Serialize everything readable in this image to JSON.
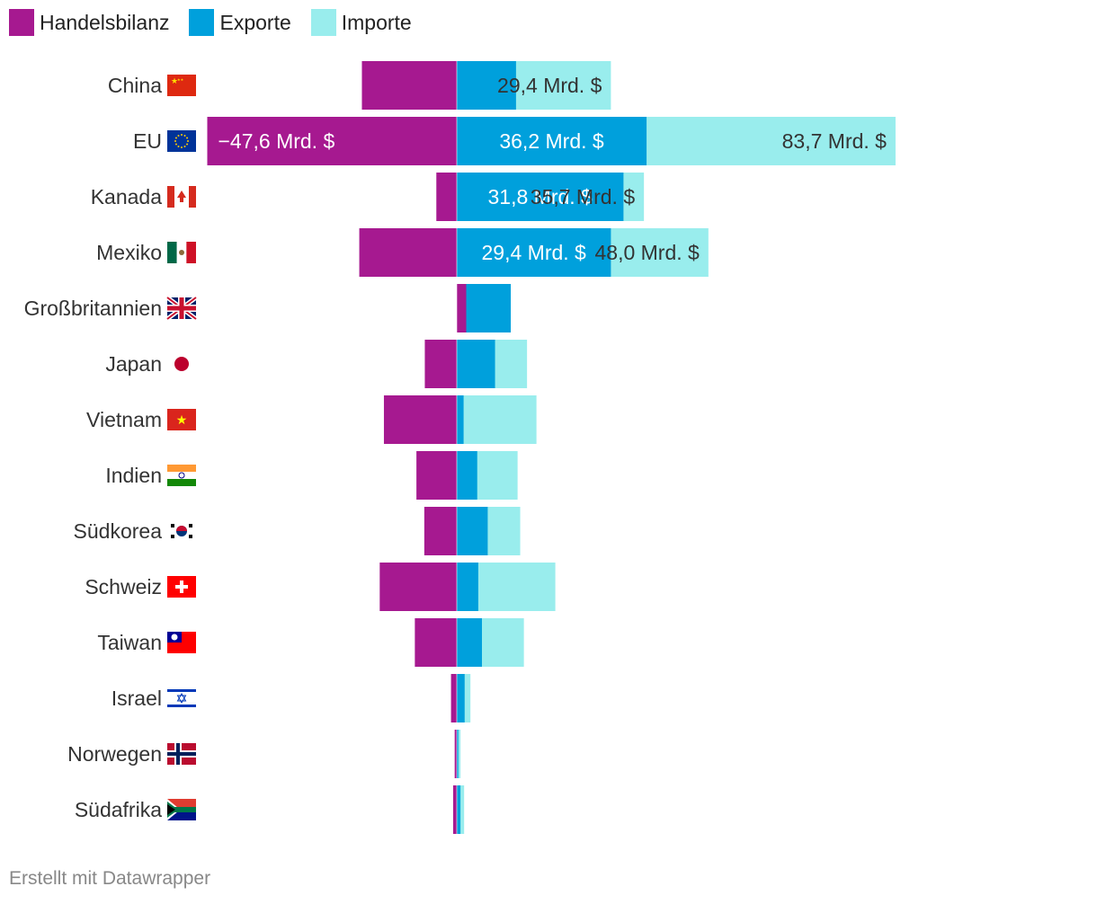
{
  "legend": {
    "items": [
      {
        "label": "Handelsbilanz",
        "color": "#a61990"
      },
      {
        "label": "Exporte",
        "color": "#00a0dc"
      },
      {
        "label": "Importe",
        "color": "#99eded"
      }
    ]
  },
  "footer": {
    "credit": "Erstellt mit Datawrapper"
  },
  "colors": {
    "balance": "#a61990",
    "exports": "#00a0dc",
    "imports": "#99eded"
  },
  "chart_data": {
    "type": "bar",
    "orientation": "horizontal",
    "unit": "Mrd. $",
    "legend_position": "top-left",
    "grid": false,
    "categories": [
      "China",
      "EU",
      "Kanada",
      "Mexiko",
      "Großbritannien",
      "Japan",
      "Vietnam",
      "Indien",
      "Südkorea",
      "Schweiz",
      "Taiwan",
      "Israel",
      "Norwegen",
      "Südafrika"
    ],
    "flags": [
      "flag-china-icon",
      "flag-eu-icon",
      "flag-canada-icon",
      "flag-mexico-icon",
      "flag-uk-icon",
      "flag-japan-icon",
      "flag-vietnam-icon",
      "flag-india-icon",
      "flag-south-korea-icon",
      "flag-switzerland-icon",
      "flag-taiwan-icon",
      "flag-israel-icon",
      "flag-norway-icon",
      "flag-south-africa-icon"
    ],
    "series": [
      {
        "name": "Handelsbilanz",
        "values": [
          -18.1,
          -47.6,
          -3.9,
          -18.6,
          1.8,
          -6.1,
          -13.9,
          -7.7,
          -6.2,
          -14.7,
          -8.0,
          -1.1,
          -0.4,
          -0.7
        ]
      },
      {
        "name": "Exporte",
        "values": [
          11.3,
          36.2,
          31.8,
          29.4,
          10.3,
          7.3,
          1.3,
          3.9,
          5.9,
          4.1,
          4.8,
          1.5,
          0.3,
          0.7
        ]
      },
      {
        "name": "Importe",
        "values": [
          29.4,
          83.7,
          35.7,
          48.0,
          8.5,
          13.4,
          15.2,
          11.6,
          12.1,
          18.8,
          12.8,
          2.6,
          0.7,
          1.4
        ]
      }
    ],
    "data_labels": {
      "China": {
        "Importe": "29,4 Mrd. $"
      },
      "EU": {
        "Handelsbilanz": "−47,6 Mrd. $",
        "Exporte": "36,2 Mrd. $",
        "Importe": "83,7 Mrd. $"
      },
      "Kanada": {
        "Exporte": "31,8 Mrd. $",
        "Importe": "35,7 Mrd. $"
      },
      "Mexiko": {
        "Exporte": "29,4 Mrd. $",
        "Importe": "48,0 Mrd. $"
      }
    }
  }
}
